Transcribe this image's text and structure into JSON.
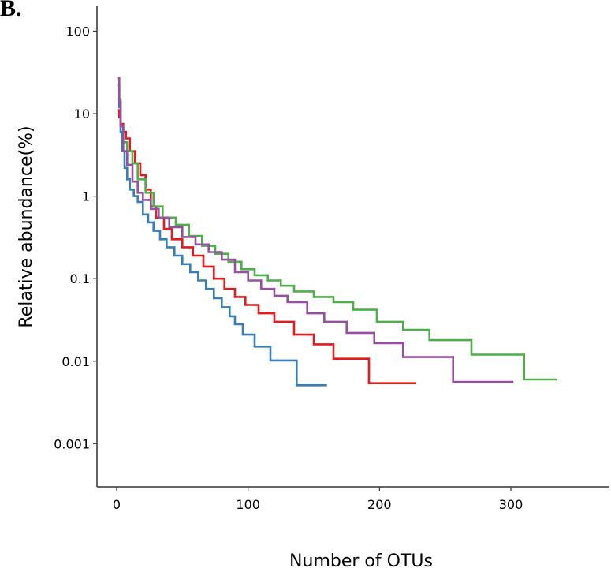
{
  "panel_label": "B.",
  "chart_data": {
    "type": "line",
    "title": "",
    "xlabel": "Number of OTUs",
    "ylabel": "Relative abundance(%)",
    "x_scale": "linear",
    "y_scale": "log",
    "xlim": [
      -15,
      375
    ],
    "ylim": [
      0.0003,
      200
    ],
    "x_ticks": [
      {
        "value": 0,
        "label": "0"
      },
      {
        "value": 100,
        "label": "100"
      },
      {
        "value": 200,
        "label": "200"
      },
      {
        "value": 300,
        "label": "300"
      }
    ],
    "y_ticks": [
      {
        "value": 100,
        "label": "100"
      },
      {
        "value": 10,
        "label": "10"
      },
      {
        "value": 1,
        "label": "1"
      },
      {
        "value": 0.1,
        "label": "0.1"
      },
      {
        "value": 0.01,
        "label": "0.01"
      },
      {
        "value": 0.001,
        "label": "0.001"
      }
    ],
    "grid": false,
    "legend": "none",
    "series": [
      {
        "color": "#377eb8",
        "step": true,
        "x": [
          1,
          2,
          3,
          4,
          6,
          8,
          10,
          13,
          16,
          20,
          24,
          28,
          33,
          38,
          44,
          50,
          56,
          62,
          68,
          74,
          80,
          86,
          90,
          96,
          105,
          117,
          137,
          160
        ],
        "y": [
          22,
          12,
          6,
          3.5,
          2.2,
          1.6,
          1.2,
          1.0,
          0.85,
          0.6,
          0.48,
          0.38,
          0.3,
          0.24,
          0.19,
          0.15,
          0.12,
          0.095,
          0.075,
          0.058,
          0.045,
          0.035,
          0.028,
          0.021,
          0.015,
          0.0102,
          0.0051,
          0.0051
        ]
      },
      {
        "color": "#e41a1c",
        "step": true,
        "x": [
          1,
          2,
          3,
          5,
          7,
          10,
          14,
          18,
          22,
          26,
          30,
          36,
          42,
          50,
          58,
          66,
          74,
          82,
          90,
          98,
          108,
          120,
          135,
          150,
          165,
          192,
          228
        ],
        "y": [
          11,
          9,
          7.5,
          6,
          5,
          3.5,
          2.5,
          1.8,
          1.2,
          0.75,
          0.55,
          0.4,
          0.3,
          0.24,
          0.19,
          0.14,
          0.1,
          0.075,
          0.06,
          0.048,
          0.038,
          0.03,
          0.021,
          0.016,
          0.0107,
          0.0054,
          0.0054
        ]
      },
      {
        "color": "#4daf4a",
        "step": true,
        "x": [
          1,
          3,
          5,
          8,
          12,
          16,
          22,
          28,
          35,
          45,
          55,
          65,
          75,
          85,
          95,
          105,
          115,
          125,
          135,
          150,
          165,
          180,
          198,
          218,
          238,
          270,
          310,
          335
        ],
        "y": [
          15,
          7,
          4.5,
          3.5,
          2.5,
          1.6,
          1.1,
          0.75,
          0.55,
          0.45,
          0.33,
          0.25,
          0.2,
          0.16,
          0.13,
          0.11,
          0.095,
          0.082,
          0.07,
          0.06,
          0.052,
          0.042,
          0.03,
          0.024,
          0.018,
          0.012,
          0.006,
          0.006
        ]
      },
      {
        "color": "#984ea3",
        "step": true,
        "x": [
          1,
          2,
          3,
          5,
          8,
          12,
          16,
          20,
          26,
          32,
          40,
          50,
          60,
          70,
          80,
          90,
          100,
          110,
          120,
          130,
          145,
          158,
          175,
          196,
          218,
          256,
          302
        ],
        "y": [
          27,
          14,
          7,
          3.5,
          2.4,
          1.5,
          1.1,
          0.9,
          0.7,
          0.55,
          0.42,
          0.32,
          0.26,
          0.21,
          0.17,
          0.12,
          0.095,
          0.075,
          0.062,
          0.052,
          0.038,
          0.03,
          0.022,
          0.0165,
          0.0112,
          0.0056,
          0.0056
        ]
      }
    ]
  }
}
